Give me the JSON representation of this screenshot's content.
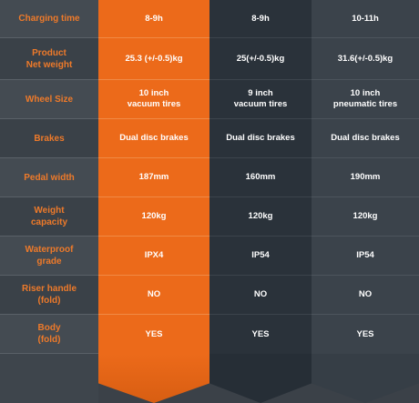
{
  "labels": [
    [
      "Charging time"
    ],
    [
      "Product",
      "Net weight"
    ],
    [
      "Wheel Size"
    ],
    [
      "Brakes"
    ],
    [
      "Pedal width"
    ],
    [
      "Weight",
      "capacity"
    ],
    [
      "Waterproof",
      "grade"
    ],
    [
      "Riser handle",
      "(fold)"
    ],
    [
      "Body",
      "(fold)"
    ]
  ],
  "columns": [
    {
      "values": [
        [
          "8-9h"
        ],
        [
          "25.3 (+/-0.5)kg"
        ],
        [
          "10 inch",
          "vacuum tires"
        ],
        [
          "Dual disc brakes"
        ],
        [
          "187mm"
        ],
        [
          "120kg"
        ],
        [
          "IPX4"
        ],
        [
          "NO"
        ],
        [
          "YES"
        ]
      ]
    },
    {
      "values": [
        [
          "8-9h"
        ],
        [
          "25(+/-0.5)kg"
        ],
        [
          "9 inch",
          "vacuum tires"
        ],
        [
          "Dual disc brakes"
        ],
        [
          "160mm"
        ],
        [
          "120kg"
        ],
        [
          "IP54"
        ],
        [
          "NO"
        ],
        [
          "YES"
        ]
      ]
    },
    {
      "values": [
        [
          "10-11h"
        ],
        [
          "31.6(+/-0.5)kg"
        ],
        [
          "10 inch",
          "pneumatic tires"
        ],
        [
          "Dual disc brakes"
        ],
        [
          "190mm"
        ],
        [
          "120kg"
        ],
        [
          "IP54"
        ],
        [
          "NO"
        ],
        [
          "YES"
        ]
      ]
    }
  ]
}
